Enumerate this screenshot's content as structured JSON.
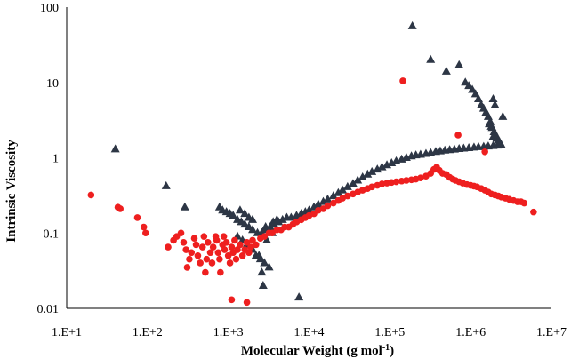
{
  "chart_data": {
    "type": "scatter",
    "title": "",
    "xlabel": "Molecular Weight (g mol",
    "xlabel_sup": "-1",
    "xlabel_close": ")",
    "ylabel": "Intrinsic Viscosity",
    "xscale": "log",
    "yscale": "log",
    "xlim": [
      10,
      10000000
    ],
    "ylim": [
      0.01,
      100
    ],
    "xticks": [
      10,
      100,
      1000,
      10000,
      100000,
      1000000,
      10000000
    ],
    "xtick_labels": [
      "1.E+1",
      "1.E+2",
      "1.E+3",
      "1.E+4",
      "1.E+5",
      "1.E+6",
      "1.E+7"
    ],
    "yticks": [
      0.01,
      0.1,
      1,
      10,
      100
    ],
    "ytick_labels": [
      "0.01",
      "0.1",
      "1",
      "10",
      "100"
    ],
    "grid": false,
    "legend": "none",
    "series": [
      {
        "marker": "triangle",
        "color": "#2d3645",
        "points": [
          [
            40,
            1.3
          ],
          [
            170,
            0.42
          ],
          [
            290,
            0.22
          ],
          [
            780,
            0.22
          ],
          [
            850,
            0.2
          ],
          [
            950,
            0.19
          ],
          [
            1050,
            0.18
          ],
          [
            1150,
            0.17
          ],
          [
            1300,
            0.15
          ],
          [
            1450,
            0.14
          ],
          [
            1600,
            0.13
          ],
          [
            1800,
            0.12
          ],
          [
            2000,
            0.11
          ],
          [
            2300,
            0.1
          ],
          [
            2600,
            0.1
          ],
          [
            2900,
            0.11
          ],
          [
            3300,
            0.12
          ],
          [
            3700,
            0.13
          ],
          [
            4200,
            0.14
          ],
          [
            4700,
            0.15
          ],
          [
            5300,
            0.16
          ],
          [
            6000,
            0.16
          ],
          [
            7000,
            0.17
          ],
          [
            8000,
            0.18
          ],
          [
            9000,
            0.19
          ],
          [
            10000,
            0.2
          ],
          [
            11500,
            0.22
          ],
          [
            13000,
            0.24
          ],
          [
            15000,
            0.26
          ],
          [
            17000,
            0.28
          ],
          [
            20000,
            0.31
          ],
          [
            23000,
            0.34
          ],
          [
            26000,
            0.37
          ],
          [
            30000,
            0.41
          ],
          [
            35000,
            0.45
          ],
          [
            40000,
            0.5
          ],
          [
            46000,
            0.55
          ],
          [
            53000,
            0.6
          ],
          [
            60000,
            0.65
          ],
          [
            70000,
            0.7
          ],
          [
            80000,
            0.75
          ],
          [
            92000,
            0.8
          ],
          [
            105000,
            0.85
          ],
          [
            120000,
            0.9
          ],
          [
            140000,
            0.95
          ],
          [
            160000,
            1.0
          ],
          [
            185000,
            1.05
          ],
          [
            210000,
            1.08
          ],
          [
            240000,
            1.1
          ],
          [
            280000,
            1.13
          ],
          [
            320000,
            1.16
          ],
          [
            370000,
            1.2
          ],
          [
            420000,
            1.22
          ],
          [
            480000,
            1.25
          ],
          [
            550000,
            1.27
          ],
          [
            630000,
            1.29
          ],
          [
            720000,
            1.31
          ],
          [
            820000,
            1.33
          ],
          [
            950000,
            1.35
          ],
          [
            1100000,
            1.37
          ],
          [
            1250000,
            1.39
          ],
          [
            1450000,
            1.4
          ],
          [
            1650000,
            1.42
          ],
          [
            1900000,
            1.44
          ],
          [
            2150000,
            1.46
          ],
          [
            2400000,
            1.48
          ],
          [
            1400,
            0.2
          ],
          [
            1600,
            0.18
          ],
          [
            1800,
            0.16
          ],
          [
            2000,
            0.15
          ],
          [
            1300,
            0.09
          ],
          [
            1500,
            0.08
          ],
          [
            1700,
            0.07
          ],
          [
            2000,
            0.06
          ],
          [
            2200,
            0.05
          ],
          [
            2500,
            0.045
          ],
          [
            2800,
            0.04
          ],
          [
            3200,
            0.035
          ],
          [
            2600,
            0.03
          ],
          [
            2400,
            0.05
          ],
          [
            3000,
            0.08
          ],
          [
            3500,
            0.1
          ],
          [
            2900,
            0.12
          ],
          [
            3600,
            0.14
          ],
          [
            4000,
            0.15
          ],
          [
            2700,
            0.02
          ],
          [
            7500,
            0.014
          ],
          [
            190000,
            56
          ],
          [
            320000,
            20
          ],
          [
            500000,
            14
          ],
          [
            720000,
            17
          ],
          [
            860000,
            10
          ],
          [
            950000,
            9
          ],
          [
            1050000,
            8
          ],
          [
            1150000,
            7
          ],
          [
            1250000,
            6
          ],
          [
            1350000,
            5
          ],
          [
            1450000,
            4.5
          ],
          [
            1550000,
            4
          ],
          [
            1650000,
            3.5
          ],
          [
            1750000,
            3
          ],
          [
            1850000,
            2.5
          ],
          [
            1950000,
            2.2
          ],
          [
            2050000,
            2
          ],
          [
            1700000,
            2.8
          ],
          [
            1800000,
            2.6
          ],
          [
            1900000,
            1.9
          ],
          [
            2100000,
            1.8
          ],
          [
            2200000,
            1.7
          ],
          [
            2300000,
            1.6
          ],
          [
            2000000,
            5
          ],
          [
            1900000,
            6
          ],
          [
            2500000,
            3.5
          ]
        ]
      },
      {
        "marker": "circle",
        "color": "#ee1f1f",
        "points": [
          [
            20,
            0.32
          ],
          [
            43,
            0.22
          ],
          [
            46,
            0.21
          ],
          [
            75,
            0.16
          ],
          [
            90,
            0.12
          ],
          [
            95,
            0.1
          ],
          [
            180,
            0.065
          ],
          [
            210,
            0.08
          ],
          [
            230,
            0.09
          ],
          [
            260,
            0.1
          ],
          [
            280,
            0.075
          ],
          [
            300,
            0.06
          ],
          [
            310,
            0.035
          ],
          [
            330,
            0.045
          ],
          [
            350,
            0.055
          ],
          [
            380,
            0.085
          ],
          [
            400,
            0.07
          ],
          [
            420,
            0.05
          ],
          [
            450,
            0.04
          ],
          [
            480,
            0.065
          ],
          [
            500,
            0.09
          ],
          [
            520,
            0.03
          ],
          [
            540,
            0.045
          ],
          [
            560,
            0.075
          ],
          [
            600,
            0.055
          ],
          [
            630,
            0.04
          ],
          [
            650,
            0.065
          ],
          [
            700,
            0.09
          ],
          [
            720,
            0.08
          ],
          [
            750,
            0.055
          ],
          [
            780,
            0.045
          ],
          [
            800,
            0.03
          ],
          [
            850,
            0.07
          ],
          [
            880,
            0.09
          ],
          [
            900,
            0.06
          ],
          [
            950,
            0.075
          ],
          [
            1000,
            0.05
          ],
          [
            1050,
            0.04
          ],
          [
            1100,
            0.065
          ],
          [
            1150,
            0.055
          ],
          [
            1200,
            0.08
          ],
          [
            1250,
            0.045
          ],
          [
            1300,
            0.06
          ],
          [
            1400,
            0.07
          ],
          [
            1500,
            0.05
          ],
          [
            1600,
            0.06
          ],
          [
            1700,
            0.075
          ],
          [
            1800,
            0.055
          ],
          [
            1900,
            0.065
          ],
          [
            2000,
            0.08
          ],
          [
            2200,
            0.07
          ],
          [
            2500,
            0.085
          ],
          [
            2800,
            0.09
          ],
          [
            3200,
            0.1
          ],
          [
            1100,
            0.013
          ],
          [
            1700,
            0.012
          ],
          [
            3500,
            0.1
          ],
          [
            4000,
            0.11
          ],
          [
            4500,
            0.11
          ],
          [
            5000,
            0.12
          ],
          [
            5600,
            0.12
          ],
          [
            6300,
            0.13
          ],
          [
            7000,
            0.14
          ],
          [
            8000,
            0.15
          ],
          [
            9000,
            0.16
          ],
          [
            10000,
            0.17
          ],
          [
            11500,
            0.18
          ],
          [
            13000,
            0.2
          ],
          [
            15000,
            0.21
          ],
          [
            17000,
            0.23
          ],
          [
            20000,
            0.25
          ],
          [
            23000,
            0.27
          ],
          [
            26000,
            0.29
          ],
          [
            30000,
            0.31
          ],
          [
            35000,
            0.33
          ],
          [
            40000,
            0.35
          ],
          [
            46000,
            0.37
          ],
          [
            53000,
            0.39
          ],
          [
            60000,
            0.41
          ],
          [
            70000,
            0.43
          ],
          [
            80000,
            0.45
          ],
          [
            92000,
            0.46
          ],
          [
            105000,
            0.47
          ],
          [
            120000,
            0.48
          ],
          [
            140000,
            0.49
          ],
          [
            160000,
            0.5
          ],
          [
            185000,
            0.51
          ],
          [
            210000,
            0.52
          ],
          [
            240000,
            0.54
          ],
          [
            280000,
            0.57
          ],
          [
            320000,
            0.62
          ],
          [
            350000,
            0.7
          ],
          [
            380000,
            0.75
          ],
          [
            410000,
            0.68
          ],
          [
            450000,
            0.62
          ],
          [
            500000,
            0.6
          ],
          [
            550000,
            0.55
          ],
          [
            600000,
            0.52
          ],
          [
            650000,
            0.5
          ],
          [
            720000,
            0.48
          ],
          [
            800000,
            0.46
          ],
          [
            900000,
            0.44
          ],
          [
            1000000,
            0.43
          ],
          [
            1100000,
            0.42
          ],
          [
            1200000,
            0.41
          ],
          [
            1350000,
            0.39
          ],
          [
            1500000,
            0.37
          ],
          [
            1650000,
            0.35
          ],
          [
            1800000,
            0.33
          ],
          [
            2000000,
            0.32
          ],
          [
            2200000,
            0.31
          ],
          [
            2400000,
            0.3
          ],
          [
            2700000,
            0.29
          ],
          [
            3000000,
            0.28
          ],
          [
            3400000,
            0.27
          ],
          [
            3800000,
            0.26
          ],
          [
            4200000,
            0.26
          ],
          [
            4600000,
            0.25
          ],
          [
            6000000,
            0.19
          ],
          [
            145000,
            10.5
          ],
          [
            700000,
            2.0
          ],
          [
            1500000,
            1.2
          ]
        ]
      }
    ]
  }
}
